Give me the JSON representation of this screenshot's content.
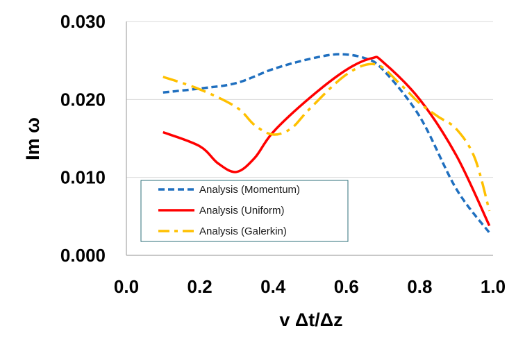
{
  "chart_data": {
    "type": "line",
    "title": "",
    "xlabel": "v Δt/Δz",
    "ylabel": "Im ω",
    "xlim": [
      0.0,
      1.0
    ],
    "ylim": [
      0.0,
      0.03
    ],
    "x_ticks": [
      "0.0",
      "0.2",
      "0.4",
      "0.6",
      "0.8",
      "1.0"
    ],
    "y_ticks": [
      "0.000",
      "0.010",
      "0.020",
      "0.030"
    ],
    "grid": "horizontal",
    "legend_position": "bottom-left-inside",
    "series": [
      {
        "name": "Analysis (Momentum)",
        "color": "#1f6fbf",
        "style": "dashed",
        "x": [
          0.1,
          0.2,
          0.3,
          0.4,
          0.5,
          0.58,
          0.65,
          0.7,
          0.8,
          0.9,
          0.99
        ],
        "values": [
          0.0209,
          0.0214,
          0.0221,
          0.0239,
          0.0252,
          0.0258,
          0.0253,
          0.0238,
          0.0178,
          0.0085,
          0.0029
        ]
      },
      {
        "name": "Analysis (Uniform)",
        "color": "#ff0000",
        "style": "solid",
        "x": [
          0.1,
          0.2,
          0.25,
          0.3,
          0.35,
          0.4,
          0.5,
          0.6,
          0.67,
          0.7,
          0.8,
          0.9,
          0.99
        ],
        "values": [
          0.0158,
          0.014,
          0.0118,
          0.0107,
          0.0125,
          0.0158,
          0.0202,
          0.0238,
          0.0253,
          0.0248,
          0.02,
          0.0128,
          0.0038
        ]
      },
      {
        "name": "Analysis (Galerkin)",
        "color": "#ffc000",
        "style": "dashdot",
        "x": [
          0.1,
          0.2,
          0.3,
          0.35,
          0.4,
          0.45,
          0.5,
          0.6,
          0.68,
          0.75,
          0.8,
          0.85,
          0.9,
          0.95,
          0.99
        ],
        "values": [
          0.0229,
          0.0213,
          0.019,
          0.0167,
          0.0155,
          0.0163,
          0.0188,
          0.0232,
          0.0245,
          0.0218,
          0.0195,
          0.0178,
          0.0162,
          0.0125,
          0.0057
        ]
      }
    ]
  }
}
